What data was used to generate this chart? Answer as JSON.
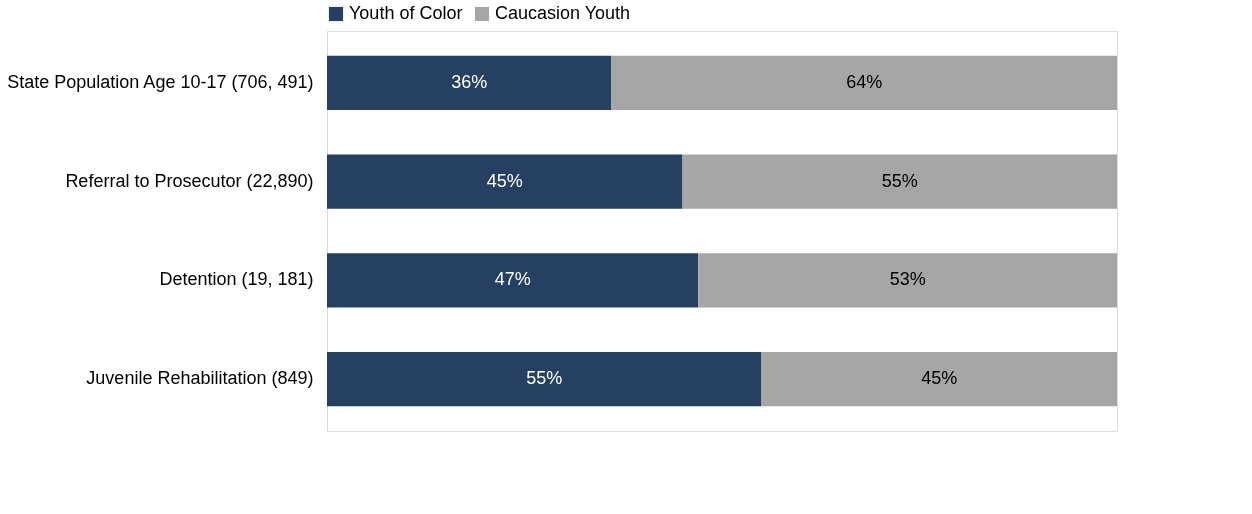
{
  "chart_data": {
    "type": "bar",
    "orientation": "horizontal",
    "stacked": true,
    "legend": "top",
    "categories": [
      "State Population Age 10-17 (706, 491)",
      "Referral to Prosecutor (22,890)",
      "Detention (19, 181)",
      "Juvenile Rehabilitation (849)"
    ],
    "series": [
      {
        "name": "Youth of Color",
        "color": "#264061",
        "values": [
          36,
          45,
          47,
          55
        ],
        "value_labels": [
          "36%",
          "45%",
          "47%",
          "55%"
        ]
      },
      {
        "name": "Caucasion Youth",
        "color": "#a6a6a6",
        "values": [
          64,
          55,
          53,
          45
        ],
        "value_labels": [
          "64%",
          "55%",
          "53%",
          "45%"
        ]
      }
    ]
  }
}
